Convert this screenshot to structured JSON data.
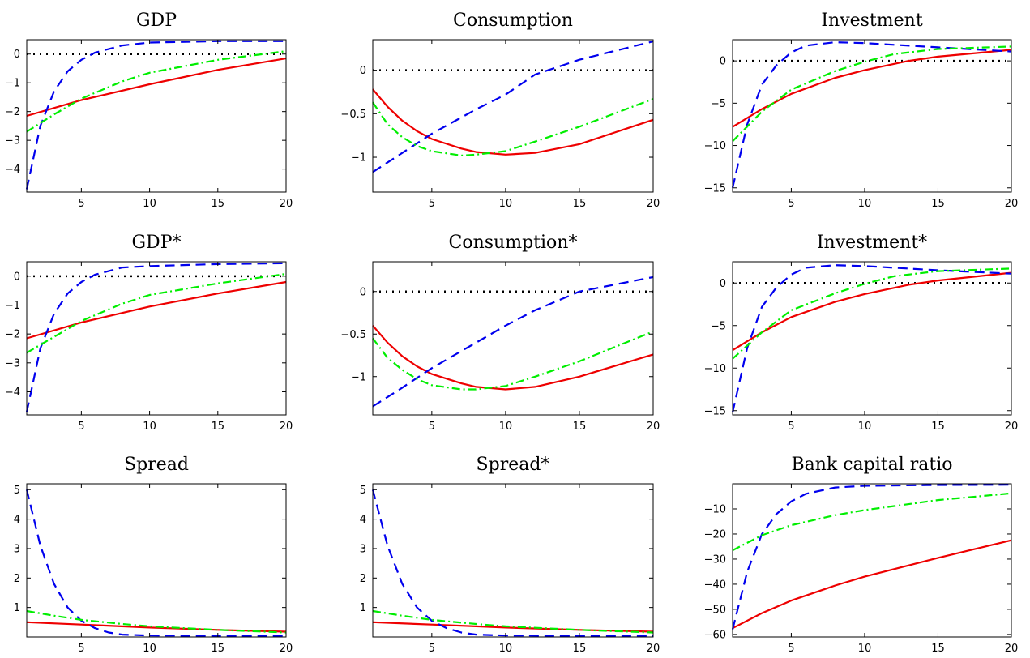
{
  "colors": {
    "red_solid": "#ee0000",
    "blue_dashed": "#0000ee",
    "green_dashdot": "#00ee00",
    "zero_line": "#000000"
  },
  "series_styles": [
    {
      "key": "red",
      "color": "#ee0000",
      "dash": "solid"
    },
    {
      "key": "blue",
      "color": "#0000ee",
      "dash": "dashed"
    },
    {
      "key": "green",
      "color": "#00ee00",
      "dash": "dashdot"
    }
  ],
  "chart_data": [
    {
      "type": "line",
      "title": "GDP",
      "xlim": [
        1,
        20
      ],
      "ylim": [
        -4.8,
        0.5
      ],
      "xticks": [
        5,
        10,
        15,
        20
      ],
      "yticks": [
        0,
        -1,
        -2,
        -3,
        -4
      ],
      "zero_line": 0,
      "series": [
        {
          "values": [
            [
              1,
              -2.15
            ],
            [
              5,
              -1.6
            ],
            [
              10,
              -1.05
            ],
            [
              15,
              -0.55
            ],
            [
              20,
              -0.15
            ]
          ]
        },
        {
          "values": [
            [
              1,
              -4.7
            ],
            [
              2,
              -2.5
            ],
            [
              3,
              -1.3
            ],
            [
              4,
              -0.6
            ],
            [
              5,
              -0.2
            ],
            [
              6,
              0.05
            ],
            [
              8,
              0.3
            ],
            [
              10,
              0.4
            ],
            [
              15,
              0.45
            ],
            [
              20,
              0.45
            ]
          ]
        },
        {
          "values": [
            [
              1,
              -2.7
            ],
            [
              3,
              -2.1
            ],
            [
              5,
              -1.55
            ],
            [
              8,
              -0.95
            ],
            [
              10,
              -0.65
            ],
            [
              15,
              -0.2
            ],
            [
              20,
              0.1
            ]
          ]
        }
      ]
    },
    {
      "type": "line",
      "title": "Consumption",
      "xlim": [
        1,
        20
      ],
      "ylim": [
        -1.4,
        0.35
      ],
      "xticks": [
        5,
        10,
        15,
        20
      ],
      "yticks": [
        0,
        -0.5,
        -1
      ],
      "zero_line": 0,
      "series": [
        {
          "values": [
            [
              1,
              -0.22
            ],
            [
              2,
              -0.42
            ],
            [
              3,
              -0.58
            ],
            [
              4,
              -0.7
            ],
            [
              5,
              -0.79
            ],
            [
              7,
              -0.9
            ],
            [
              8,
              -0.94
            ],
            [
              10,
              -0.97
            ],
            [
              12,
              -0.95
            ],
            [
              15,
              -0.85
            ],
            [
              20,
              -0.57
            ]
          ]
        },
        {
          "values": [
            [
              1,
              -1.17
            ],
            [
              3,
              -0.95
            ],
            [
              5,
              -0.73
            ],
            [
              8,
              -0.45
            ],
            [
              10,
              -0.28
            ],
            [
              12,
              -0.05
            ],
            [
              15,
              0.12
            ],
            [
              20,
              0.33
            ]
          ]
        },
        {
          "values": [
            [
              1,
              -0.37
            ],
            [
              2,
              -0.62
            ],
            [
              3,
              -0.77
            ],
            [
              4,
              -0.87
            ],
            [
              5,
              -0.93
            ],
            [
              7,
              -0.98
            ],
            [
              8,
              -0.97
            ],
            [
              10,
              -0.93
            ],
            [
              12,
              -0.82
            ],
            [
              15,
              -0.65
            ],
            [
              20,
              -0.33
            ]
          ]
        }
      ]
    },
    {
      "type": "line",
      "title": "Investment",
      "xlim": [
        1,
        20
      ],
      "ylim": [
        -15.5,
        2.5
      ],
      "xticks": [
        5,
        10,
        15,
        20
      ],
      "yticks": [
        0,
        -5,
        -10,
        -15
      ],
      "zero_line": 0,
      "series": [
        {
          "values": [
            [
              1,
              -7.8
            ],
            [
              3,
              -5.7
            ],
            [
              5,
              -3.9
            ],
            [
              8,
              -2.0
            ],
            [
              10,
              -1.1
            ],
            [
              13,
              0.0
            ],
            [
              15,
              0.5
            ],
            [
              20,
              1.3
            ]
          ]
        },
        {
          "values": [
            [
              1,
              -15.0
            ],
            [
              2,
              -7.5
            ],
            [
              3,
              -2.8
            ],
            [
              4,
              -0.5
            ],
            [
              5,
              1.0
            ],
            [
              6,
              1.8
            ],
            [
              8,
              2.2
            ],
            [
              10,
              2.1
            ],
            [
              15,
              1.6
            ],
            [
              20,
              1.1
            ]
          ]
        },
        {
          "values": [
            [
              1,
              -9.5
            ],
            [
              3,
              -6.0
            ],
            [
              5,
              -3.4
            ],
            [
              8,
              -1.2
            ],
            [
              10,
              -0.1
            ],
            [
              12,
              0.8
            ],
            [
              15,
              1.4
            ],
            [
              20,
              1.7
            ]
          ]
        }
      ]
    },
    {
      "type": "line",
      "title": "GDP*",
      "xlim": [
        1,
        20
      ],
      "ylim": [
        -4.8,
        0.5
      ],
      "xticks": [
        5,
        10,
        15,
        20
      ],
      "yticks": [
        0,
        -1,
        -2,
        -3,
        -4
      ],
      "zero_line": 0,
      "series": [
        {
          "values": [
            [
              1,
              -2.15
            ],
            [
              5,
              -1.6
            ],
            [
              10,
              -1.05
            ],
            [
              15,
              -0.6
            ],
            [
              20,
              -0.2
            ]
          ]
        },
        {
          "values": [
            [
              1,
              -4.7
            ],
            [
              2,
              -2.5
            ],
            [
              3,
              -1.3
            ],
            [
              4,
              -0.6
            ],
            [
              5,
              -0.2
            ],
            [
              6,
              0.05
            ],
            [
              8,
              0.3
            ],
            [
              10,
              0.35
            ],
            [
              15,
              0.42
            ],
            [
              20,
              0.45
            ]
          ]
        },
        {
          "values": [
            [
              1,
              -2.65
            ],
            [
              3,
              -2.1
            ],
            [
              5,
              -1.55
            ],
            [
              8,
              -0.95
            ],
            [
              10,
              -0.65
            ],
            [
              15,
              -0.25
            ],
            [
              20,
              0.08
            ]
          ]
        }
      ]
    },
    {
      "type": "line",
      "title": "Consumption*",
      "xlim": [
        1,
        20
      ],
      "ylim": [
        -1.45,
        0.35
      ],
      "xticks": [
        5,
        10,
        15,
        20
      ],
      "yticks": [
        0,
        -0.5,
        -1
      ],
      "zero_line": 0,
      "series": [
        {
          "values": [
            [
              1,
              -0.4
            ],
            [
              2,
              -0.6
            ],
            [
              3,
              -0.76
            ],
            [
              4,
              -0.88
            ],
            [
              5,
              -0.97
            ],
            [
              7,
              -1.08
            ],
            [
              8,
              -1.12
            ],
            [
              10,
              -1.15
            ],
            [
              12,
              -1.12
            ],
            [
              15,
              -1.0
            ],
            [
              20,
              -0.74
            ]
          ]
        },
        {
          "values": [
            [
              1,
              -1.35
            ],
            [
              3,
              -1.13
            ],
            [
              5,
              -0.9
            ],
            [
              8,
              -0.6
            ],
            [
              10,
              -0.4
            ],
            [
              12,
              -0.22
            ],
            [
              15,
              0.0
            ],
            [
              20,
              0.17
            ]
          ]
        },
        {
          "values": [
            [
              1,
              -0.55
            ],
            [
              2,
              -0.78
            ],
            [
              3,
              -0.92
            ],
            [
              4,
              -1.03
            ],
            [
              5,
              -1.1
            ],
            [
              7,
              -1.15
            ],
            [
              8,
              -1.15
            ],
            [
              10,
              -1.11
            ],
            [
              12,
              -1.0
            ],
            [
              15,
              -0.82
            ],
            [
              20,
              -0.47
            ]
          ]
        }
      ]
    },
    {
      "type": "line",
      "title": "Investment*",
      "xlim": [
        1,
        20
      ],
      "ylim": [
        -15.5,
        2.5
      ],
      "xticks": [
        5,
        10,
        15,
        20
      ],
      "yticks": [
        0,
        -5,
        -10,
        -15
      ],
      "zero_line": 0,
      "series": [
        {
          "values": [
            [
              1,
              -7.9
            ],
            [
              3,
              -5.8
            ],
            [
              5,
              -4.0
            ],
            [
              8,
              -2.2
            ],
            [
              10,
              -1.3
            ],
            [
              13,
              -0.2
            ],
            [
              15,
              0.3
            ],
            [
              20,
              1.2
            ]
          ]
        },
        {
          "values": [
            [
              1,
              -15.2
            ],
            [
              2,
              -7.6
            ],
            [
              3,
              -2.8
            ],
            [
              4,
              -0.5
            ],
            [
              5,
              1.0
            ],
            [
              6,
              1.8
            ],
            [
              8,
              2.1
            ],
            [
              10,
              2.0
            ],
            [
              15,
              1.5
            ],
            [
              20,
              1.1
            ]
          ]
        },
        {
          "values": [
            [
              1,
              -8.9
            ],
            [
              3,
              -5.8
            ],
            [
              5,
              -3.2
            ],
            [
              8,
              -1.2
            ],
            [
              10,
              -0.1
            ],
            [
              12,
              0.8
            ],
            [
              15,
              1.4
            ],
            [
              20,
              1.7
            ]
          ]
        }
      ]
    },
    {
      "type": "line",
      "title": "Spread",
      "xlim": [
        1,
        20
      ],
      "ylim": [
        0.0,
        5.2
      ],
      "xticks": [
        5,
        10,
        15,
        20
      ],
      "yticks": [
        1,
        2,
        3,
        4,
        5
      ],
      "series": [
        {
          "values": [
            [
              1,
              0.5
            ],
            [
              5,
              0.42
            ],
            [
              10,
              0.32
            ],
            [
              15,
              0.24
            ],
            [
              20,
              0.18
            ]
          ]
        },
        {
          "values": [
            [
              1,
              5.0
            ],
            [
              2,
              3.1
            ],
            [
              3,
              1.8
            ],
            [
              4,
              1.0
            ],
            [
              5,
              0.55
            ],
            [
              6,
              0.3
            ],
            [
              7,
              0.15
            ],
            [
              8,
              0.08
            ],
            [
              10,
              0.05
            ],
            [
              20,
              0.03
            ]
          ]
        },
        {
          "values": [
            [
              1,
              0.88
            ],
            [
              3,
              0.72
            ],
            [
              5,
              0.58
            ],
            [
              8,
              0.44
            ],
            [
              10,
              0.36
            ],
            [
              15,
              0.24
            ],
            [
              20,
              0.15
            ]
          ]
        }
      ]
    },
    {
      "type": "line",
      "title": "Spread*",
      "xlim": [
        1,
        20
      ],
      "ylim": [
        0.0,
        5.2
      ],
      "xticks": [
        5,
        10,
        15,
        20
      ],
      "yticks": [
        1,
        2,
        3,
        4,
        5
      ],
      "series": [
        {
          "values": [
            [
              1,
              0.5
            ],
            [
              5,
              0.42
            ],
            [
              10,
              0.32
            ],
            [
              15,
              0.24
            ],
            [
              20,
              0.18
            ]
          ]
        },
        {
          "values": [
            [
              1,
              5.0
            ],
            [
              2,
              3.1
            ],
            [
              3,
              1.8
            ],
            [
              4,
              1.0
            ],
            [
              5,
              0.55
            ],
            [
              6,
              0.3
            ],
            [
              7,
              0.15
            ],
            [
              8,
              0.08
            ],
            [
              10,
              0.05
            ],
            [
              20,
              0.03
            ]
          ]
        },
        {
          "values": [
            [
              1,
              0.88
            ],
            [
              3,
              0.72
            ],
            [
              5,
              0.58
            ],
            [
              8,
              0.44
            ],
            [
              10,
              0.36
            ],
            [
              15,
              0.24
            ],
            [
              20,
              0.15
            ]
          ]
        }
      ]
    },
    {
      "type": "line",
      "title": "Bank capital ratio",
      "xlim": [
        1,
        20
      ],
      "ylim": [
        -61,
        0
      ],
      "xticks": [
        5,
        10,
        15,
        20
      ],
      "yticks": [
        -10,
        -20,
        -30,
        -40,
        -50,
        -60
      ],
      "series": [
        {
          "values": [
            [
              1,
              -57.5
            ],
            [
              3,
              -51.5
            ],
            [
              5,
              -46.5
            ],
            [
              8,
              -40.5
            ],
            [
              10,
              -37.0
            ],
            [
              12,
              -34.0
            ],
            [
              15,
              -29.5
            ],
            [
              20,
              -22.5
            ]
          ]
        },
        {
          "values": [
            [
              1,
              -58.0
            ],
            [
              2,
              -35.0
            ],
            [
              3,
              -20.0
            ],
            [
              4,
              -12.0
            ],
            [
              5,
              -7.0
            ],
            [
              6,
              -4.0
            ],
            [
              8,
              -1.5
            ],
            [
              10,
              -0.8
            ],
            [
              15,
              -0.5
            ],
            [
              20,
              -0.4
            ]
          ]
        },
        {
          "values": [
            [
              1,
              -26.5
            ],
            [
              3,
              -20.5
            ],
            [
              5,
              -16.5
            ],
            [
              8,
              -12.5
            ],
            [
              10,
              -10.5
            ],
            [
              15,
              -6.5
            ],
            [
              20,
              -3.8
            ]
          ]
        }
      ]
    }
  ]
}
